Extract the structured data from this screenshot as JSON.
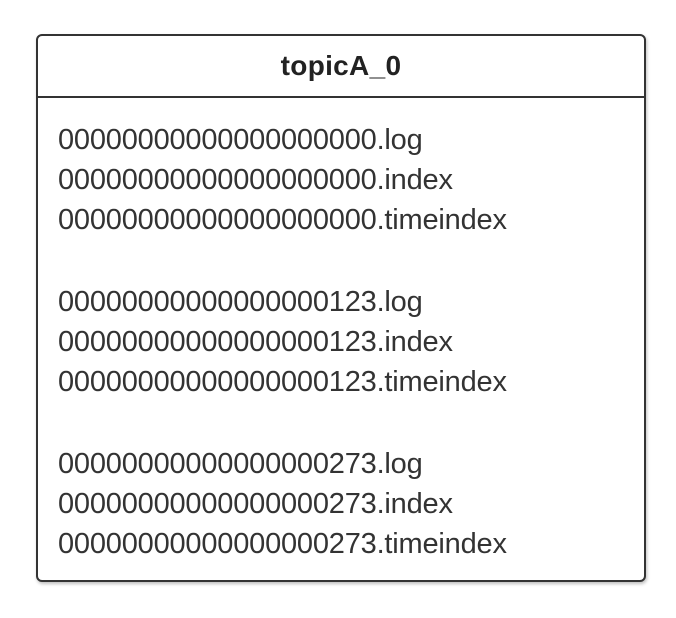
{
  "entity": {
    "title": "topicA_0",
    "groups": [
      {
        "files": [
          "00000000000000000000.log",
          "00000000000000000000.index",
          "00000000000000000000.timeindex"
        ]
      },
      {
        "files": [
          "00000000000000000123.log",
          "00000000000000000123.index",
          "00000000000000000123.timeindex"
        ]
      },
      {
        "files": [
          "00000000000000000273.log",
          "00000000000000000273.index",
          "00000000000000000273.timeindex"
        ]
      }
    ]
  }
}
